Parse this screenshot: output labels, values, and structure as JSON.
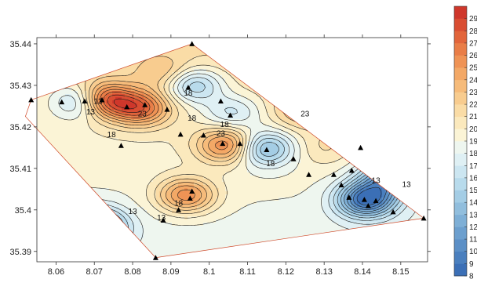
{
  "chart_data": {
    "type": "heatmap",
    "title": "",
    "xlabel": "",
    "ylabel": "",
    "xlim": [
      8.055,
      8.157
    ],
    "ylim": [
      35.3875,
      35.4415
    ],
    "x_ticks": [
      "8.06",
      "8.07",
      "8.08",
      "8.09",
      "8.1",
      "8.11",
      "8.12",
      "8.13",
      "8.14",
      "8.15"
    ],
    "y_ticks": [
      "35.39",
      "35.4",
      "35.41",
      "35.42",
      "35.43",
      "35.44"
    ],
    "colorbar": {
      "min": 8,
      "max": 30,
      "labels": [
        "8",
        "9",
        "10",
        "11",
        "12",
        "13",
        "14",
        "15",
        "16",
        "17",
        "18",
        "19",
        "20",
        "21",
        "22",
        "23",
        "24",
        "25",
        "26",
        "27",
        "28",
        "29"
      ],
      "colors": [
        "#3b6fb6",
        "#4a7fbe",
        "#5b8fc6",
        "#6c9fce",
        "#7eafd6",
        "#91bedd",
        "#a4cde5",
        "#b8dbec",
        "#cce6f1",
        "#dff0f4",
        "#eef6ef",
        "#fbf4d6",
        "#fbe9bd",
        "#fadca6",
        "#f8cc8f",
        "#f6bb7a",
        "#f3a866",
        "#ef9355",
        "#e97d47",
        "#e2653b",
        "#d94d32",
        "#cf372b"
      ]
    },
    "contour_labels": [
      "13",
      "13",
      "13",
      "18",
      "18",
      "18",
      "18",
      "18",
      "18",
      "23",
      "23",
      "23",
      "13",
      "13",
      "13"
    ],
    "stations": [
      [
        8.0535,
        35.4265
      ],
      [
        8.0615,
        35.426
      ],
      [
        8.0675,
        35.4262
      ],
      [
        8.072,
        35.4265
      ],
      [
        8.0785,
        35.4248
      ],
      [
        8.0832,
        35.4253
      ],
      [
        8.089,
        35.4242
      ],
      [
        8.0955,
        35.44
      ],
      [
        8.0945,
        35.4295
      ],
      [
        8.103,
        35.4262
      ],
      [
        8.1055,
        35.4228
      ],
      [
        8.0925,
        35.4182
      ],
      [
        8.0985,
        35.418
      ],
      [
        8.1035,
        35.416
      ],
      [
        8.108,
        35.416
      ],
      [
        8.115,
        35.4145
      ],
      [
        8.122,
        35.4123
      ],
      [
        8.126,
        35.4085
      ],
      [
        8.1325,
        35.4085
      ],
      [
        8.1395,
        35.415
      ],
      [
        8.1372,
        35.4095
      ],
      [
        8.1345,
        35.406
      ],
      [
        8.1365,
        35.403
      ],
      [
        8.1405,
        35.4025
      ],
      [
        8.1435,
        35.4022
      ],
      [
        8.1415,
        35.401
      ],
      [
        8.148,
        35.3995
      ],
      [
        8.156,
        35.398
      ],
      [
        8.0955,
        35.4045
      ],
      [
        8.095,
        35.4028
      ],
      [
        8.092,
        35.4
      ],
      [
        8.088,
        35.3975
      ],
      [
        8.086,
        35.3885
      ],
      [
        8.077,
        35.4155
      ]
    ],
    "hotspots": [
      {
        "x": 8.072,
        "y": 35.4265,
        "v": 30
      },
      {
        "x": 8.082,
        "y": 35.4245,
        "v": 26.5
      },
      {
        "x": 8.1045,
        "y": 35.4155,
        "v": 26
      },
      {
        "x": 8.096,
        "y": 35.43,
        "v": 14
      },
      {
        "x": 8.106,
        "y": 35.4235,
        "v": 16
      },
      {
        "x": 8.1145,
        "y": 35.4148,
        "v": 13
      },
      {
        "x": 8.0675,
        "y": 35.4262,
        "v": 12
      },
      {
        "x": 8.094,
        "y": 35.4035,
        "v": 26
      },
      {
        "x": 8.141,
        "y": 35.4025,
        "v": 9
      },
      {
        "x": 8.147,
        "y": 35.408,
        "v": 12
      },
      {
        "x": 8.07,
        "y": 35.396,
        "v": 9
      },
      {
        "x": 8.125,
        "y": 35.424,
        "v": 23
      },
      {
        "x": 8.088,
        "y": 35.433,
        "v": 22
      },
      {
        "x": 8.13,
        "y": 35.415,
        "v": 21
      }
    ]
  }
}
